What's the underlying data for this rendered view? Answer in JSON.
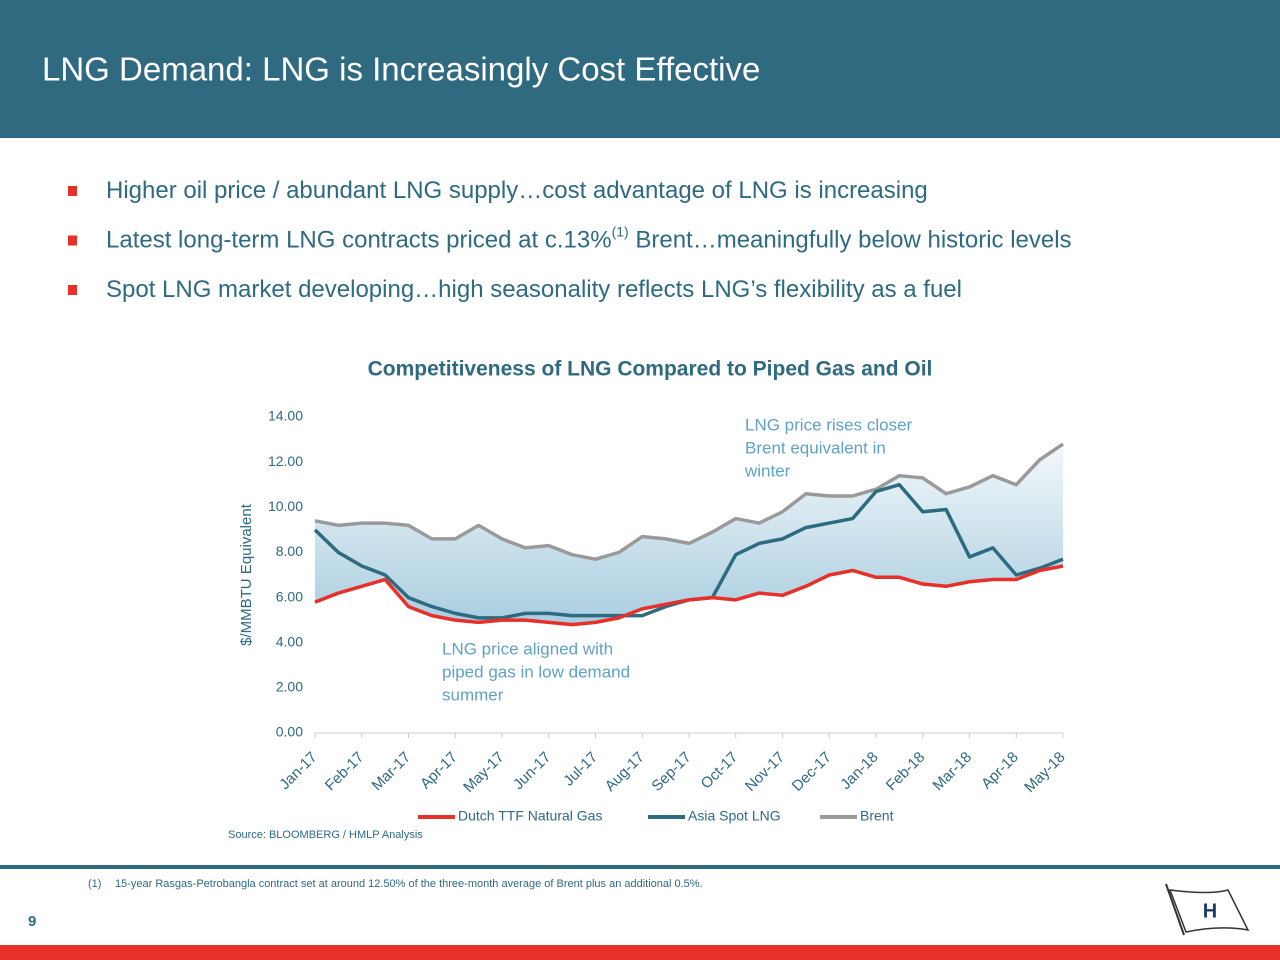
{
  "header": {
    "title": "LNG Demand: LNG is Increasingly Cost Effective"
  },
  "bullets": [
    {
      "text": "Higher oil price / abundant LNG supply…cost advantage of LNG is increasing"
    },
    {
      "text": "Latest long-term LNG contracts priced at c.13%",
      "superscript": "(1)",
      "text_after": " Brent…meaningfully below historic levels"
    },
    {
      "text": "Spot LNG market developing…high seasonality reflects LNG’s flexibility as a fuel"
    }
  ],
  "chart_data": {
    "type": "line",
    "title": "Competitiveness of LNG Compared to Piped Gas and Oil",
    "y_label": "$/MMBTU Equivalent",
    "categories": [
      "Jan-17",
      null,
      "Feb-17",
      null,
      "Mar-17",
      null,
      "Apr-17",
      null,
      "May-17",
      null,
      "Jun-17",
      null,
      "Jul-17",
      null,
      "Aug-17",
      null,
      "Sep-17",
      null,
      "Oct-17",
      null,
      "Nov-17",
      null,
      "Dec-17",
      null,
      "Jan-18",
      null,
      "Feb-18",
      null,
      "Mar-18",
      null,
      "Apr-18",
      null,
      "May-18"
    ],
    "ylim": [
      0,
      14
    ],
    "yticks": [
      {
        "value": 0,
        "label": "0.00"
      },
      {
        "value": 2,
        "label": "2.00"
      },
      {
        "value": 4,
        "label": "4.00"
      },
      {
        "value": 6,
        "label": "6.00"
      },
      {
        "value": 8,
        "label": "8.00"
      },
      {
        "value": 10,
        "label": "10.00"
      },
      {
        "value": 12,
        "label": "12.00"
      },
      {
        "value": 14,
        "label": "14.00"
      }
    ],
    "series": [
      {
        "name": "Dutch TTF Natural Gas",
        "color": "#e8302a",
        "values": [
          5.8,
          6.2,
          6.5,
          6.8,
          5.6,
          5.2,
          5.0,
          4.9,
          5.0,
          5.0,
          4.9,
          4.8,
          4.9,
          5.1,
          5.5,
          5.7,
          5.9,
          6.0,
          5.9,
          6.2,
          6.1,
          6.5,
          7.0,
          7.2,
          6.9,
          6.9,
          6.6,
          6.5,
          6.7,
          6.8,
          6.8,
          7.2,
          7.4
        ]
      },
      {
        "name": "Asia Spot LNG",
        "color": "#2e6a80",
        "values": [
          9.0,
          8.0,
          7.4,
          7.0,
          6.0,
          5.6,
          5.3,
          5.1,
          5.1,
          5.3,
          5.3,
          5.2,
          5.2,
          5.2,
          5.2,
          5.6,
          5.9,
          6.0,
          7.9,
          8.4,
          8.6,
          9.1,
          9.3,
          9.5,
          10.7,
          11.0,
          9.8,
          9.9,
          7.8,
          8.2,
          7.0,
          7.3,
          7.7
        ]
      },
      {
        "name": "Brent",
        "color": "#9a9a9a",
        "values": [
          9.4,
          9.2,
          9.3,
          9.3,
          9.2,
          8.6,
          8.6,
          9.2,
          8.6,
          8.2,
          8.3,
          7.9,
          7.7,
          8.0,
          8.7,
          8.6,
          8.4,
          8.9,
          9.5,
          9.3,
          9.8,
          10.6,
          10.5,
          10.5,
          10.8,
          11.4,
          11.3,
          10.6,
          10.9,
          11.4,
          11.0,
          12.1,
          12.8
        ]
      }
    ],
    "annotations": [
      {
        "lines": [
          "LNG price rises closer",
          "Brent equivalent in",
          "winter"
        ]
      },
      {
        "lines": [
          "LNG price aligned with",
          "piped gas in low demand",
          "summer"
        ]
      }
    ],
    "source": "Source: BLOOMBERG / HMLP Analysis"
  },
  "footnote": {
    "marker": "(1)",
    "text": "15-year Rasgas-Petrobangla contract set at around 12.50% of the three-month average of Brent plus an additional 0.5%."
  },
  "page_number": 9
}
